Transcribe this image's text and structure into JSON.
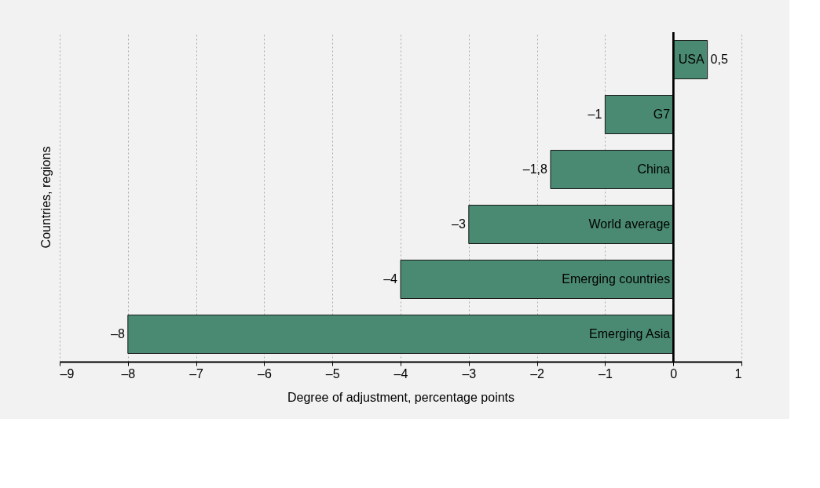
{
  "chart_data": {
    "type": "bar",
    "orientation": "horizontal",
    "xlabel": "Degree of adjustment, percentage points",
    "ylabel": "Countries, regions",
    "categories": [
      "USA",
      "G7",
      "China",
      "World average",
      "Emerging countries",
      "Emerging Asia"
    ],
    "values": [
      0.5,
      -1,
      -1.8,
      -3,
      -4,
      -8
    ],
    "value_labels": [
      "0,5",
      "–1",
      "–1,8",
      "–3",
      "–4",
      "–8"
    ],
    "color": "#4a8a72",
    "xlim": [
      -9,
      1
    ],
    "xticks": [
      {
        "value": -9,
        "label": "–9"
      },
      {
        "value": -8,
        "label": "–8"
      },
      {
        "value": -7,
        "label": "–7"
      },
      {
        "value": -6,
        "label": "–6"
      },
      {
        "value": -5,
        "label": "–5"
      },
      {
        "value": -4,
        "label": "–4"
      },
      {
        "value": -3,
        "label": "–3"
      },
      {
        "value": -2,
        "label": "–2"
      },
      {
        "value": -1,
        "label": "–1"
      },
      0,
      1
    ],
    "grid": "x"
  }
}
